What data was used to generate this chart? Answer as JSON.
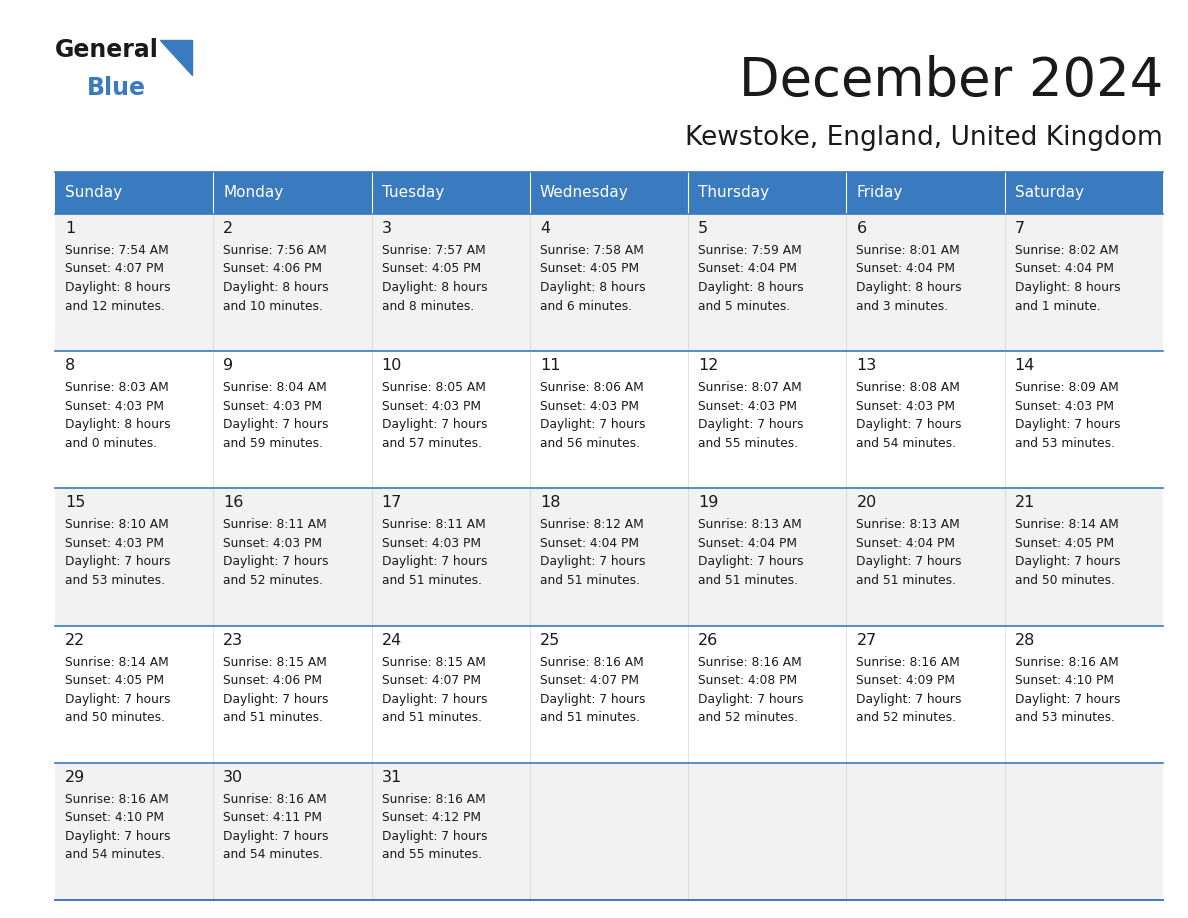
{
  "title": "December 2024",
  "subtitle": "Kewstoke, England, United Kingdom",
  "header_color": "#3a7abf",
  "header_text_color": "#ffffff",
  "cell_bg_even": "#f2f2f2",
  "cell_bg_odd": "#ffffff",
  "border_color": "#3a7abf",
  "text_color": "#1a1a1a",
  "days_of_week": [
    "Sunday",
    "Monday",
    "Tuesday",
    "Wednesday",
    "Thursday",
    "Friday",
    "Saturday"
  ],
  "weeks": [
    [
      {
        "day": 1,
        "sunrise": "7:54 AM",
        "sunset": "4:07 PM",
        "daylight_line1": "Daylight: 8 hours",
        "daylight_line2": "and 12 minutes."
      },
      {
        "day": 2,
        "sunrise": "7:56 AM",
        "sunset": "4:06 PM",
        "daylight_line1": "Daylight: 8 hours",
        "daylight_line2": "and 10 minutes."
      },
      {
        "day": 3,
        "sunrise": "7:57 AM",
        "sunset": "4:05 PM",
        "daylight_line1": "Daylight: 8 hours",
        "daylight_line2": "and 8 minutes."
      },
      {
        "day": 4,
        "sunrise": "7:58 AM",
        "sunset": "4:05 PM",
        "daylight_line1": "Daylight: 8 hours",
        "daylight_line2": "and 6 minutes."
      },
      {
        "day": 5,
        "sunrise": "7:59 AM",
        "sunset": "4:04 PM",
        "daylight_line1": "Daylight: 8 hours",
        "daylight_line2": "and 5 minutes."
      },
      {
        "day": 6,
        "sunrise": "8:01 AM",
        "sunset": "4:04 PM",
        "daylight_line1": "Daylight: 8 hours",
        "daylight_line2": "and 3 minutes."
      },
      {
        "day": 7,
        "sunrise": "8:02 AM",
        "sunset": "4:04 PM",
        "daylight_line1": "Daylight: 8 hours",
        "daylight_line2": "and 1 minute."
      }
    ],
    [
      {
        "day": 8,
        "sunrise": "8:03 AM",
        "sunset": "4:03 PM",
        "daylight_line1": "Daylight: 8 hours",
        "daylight_line2": "and 0 minutes."
      },
      {
        "day": 9,
        "sunrise": "8:04 AM",
        "sunset": "4:03 PM",
        "daylight_line1": "Daylight: 7 hours",
        "daylight_line2": "and 59 minutes."
      },
      {
        "day": 10,
        "sunrise": "8:05 AM",
        "sunset": "4:03 PM",
        "daylight_line1": "Daylight: 7 hours",
        "daylight_line2": "and 57 minutes."
      },
      {
        "day": 11,
        "sunrise": "8:06 AM",
        "sunset": "4:03 PM",
        "daylight_line1": "Daylight: 7 hours",
        "daylight_line2": "and 56 minutes."
      },
      {
        "day": 12,
        "sunrise": "8:07 AM",
        "sunset": "4:03 PM",
        "daylight_line1": "Daylight: 7 hours",
        "daylight_line2": "and 55 minutes."
      },
      {
        "day": 13,
        "sunrise": "8:08 AM",
        "sunset": "4:03 PM",
        "daylight_line1": "Daylight: 7 hours",
        "daylight_line2": "and 54 minutes."
      },
      {
        "day": 14,
        "sunrise": "8:09 AM",
        "sunset": "4:03 PM",
        "daylight_line1": "Daylight: 7 hours",
        "daylight_line2": "and 53 minutes."
      }
    ],
    [
      {
        "day": 15,
        "sunrise": "8:10 AM",
        "sunset": "4:03 PM",
        "daylight_line1": "Daylight: 7 hours",
        "daylight_line2": "and 53 minutes."
      },
      {
        "day": 16,
        "sunrise": "8:11 AM",
        "sunset": "4:03 PM",
        "daylight_line1": "Daylight: 7 hours",
        "daylight_line2": "and 52 minutes."
      },
      {
        "day": 17,
        "sunrise": "8:11 AM",
        "sunset": "4:03 PM",
        "daylight_line1": "Daylight: 7 hours",
        "daylight_line2": "and 51 minutes."
      },
      {
        "day": 18,
        "sunrise": "8:12 AM",
        "sunset": "4:04 PM",
        "daylight_line1": "Daylight: 7 hours",
        "daylight_line2": "and 51 minutes."
      },
      {
        "day": 19,
        "sunrise": "8:13 AM",
        "sunset": "4:04 PM",
        "daylight_line1": "Daylight: 7 hours",
        "daylight_line2": "and 51 minutes."
      },
      {
        "day": 20,
        "sunrise": "8:13 AM",
        "sunset": "4:04 PM",
        "daylight_line1": "Daylight: 7 hours",
        "daylight_line2": "and 51 minutes."
      },
      {
        "day": 21,
        "sunrise": "8:14 AM",
        "sunset": "4:05 PM",
        "daylight_line1": "Daylight: 7 hours",
        "daylight_line2": "and 50 minutes."
      }
    ],
    [
      {
        "day": 22,
        "sunrise": "8:14 AM",
        "sunset": "4:05 PM",
        "daylight_line1": "Daylight: 7 hours",
        "daylight_line2": "and 50 minutes."
      },
      {
        "day": 23,
        "sunrise": "8:15 AM",
        "sunset": "4:06 PM",
        "daylight_line1": "Daylight: 7 hours",
        "daylight_line2": "and 51 minutes."
      },
      {
        "day": 24,
        "sunrise": "8:15 AM",
        "sunset": "4:07 PM",
        "daylight_line1": "Daylight: 7 hours",
        "daylight_line2": "and 51 minutes."
      },
      {
        "day": 25,
        "sunrise": "8:16 AM",
        "sunset": "4:07 PM",
        "daylight_line1": "Daylight: 7 hours",
        "daylight_line2": "and 51 minutes."
      },
      {
        "day": 26,
        "sunrise": "8:16 AM",
        "sunset": "4:08 PM",
        "daylight_line1": "Daylight: 7 hours",
        "daylight_line2": "and 52 minutes."
      },
      {
        "day": 27,
        "sunrise": "8:16 AM",
        "sunset": "4:09 PM",
        "daylight_line1": "Daylight: 7 hours",
        "daylight_line2": "and 52 minutes."
      },
      {
        "day": 28,
        "sunrise": "8:16 AM",
        "sunset": "4:10 PM",
        "daylight_line1": "Daylight: 7 hours",
        "daylight_line2": "and 53 minutes."
      }
    ],
    [
      {
        "day": 29,
        "sunrise": "8:16 AM",
        "sunset": "4:10 PM",
        "daylight_line1": "Daylight: 7 hours",
        "daylight_line2": "and 54 minutes."
      },
      {
        "day": 30,
        "sunrise": "8:16 AM",
        "sunset": "4:11 PM",
        "daylight_line1": "Daylight: 7 hours",
        "daylight_line2": "and 54 minutes."
      },
      {
        "day": 31,
        "sunrise": "8:16 AM",
        "sunset": "4:12 PM",
        "daylight_line1": "Daylight: 7 hours",
        "daylight_line2": "and 55 minutes."
      },
      null,
      null,
      null,
      null
    ]
  ]
}
